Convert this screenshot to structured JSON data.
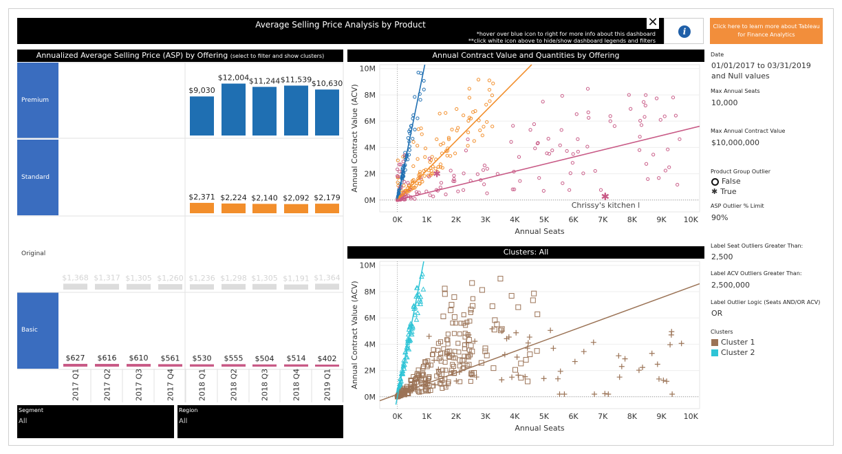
{
  "header": {
    "title": "Average Selling Price Analysis by Product",
    "note1": "*hover over blue icon to right for more info about this dashboard",
    "note2": "**click white icon above to hide/show dashboard legends and filters",
    "close_glyph": "✕",
    "info_glyph": "i",
    "tableau_link": "Click here to learn more about Tableau for Finance Analytics"
  },
  "asp": {
    "title": "Annualized Average Selling Price (ASP) by Offering",
    "subtitle": "(select to filter and show clusters)",
    "offerings": [
      "Premium",
      "Standard",
      "Original",
      "Basic"
    ],
    "quarters": [
      "2017 Q1",
      "2017 Q2",
      "2017 Q3",
      "2017 Q4",
      "2018 Q1",
      "2018 Q2",
      "2018 Q3",
      "2018 Q4",
      "2019 Q1"
    ]
  },
  "chart_data": [
    {
      "type": "bar",
      "title": "Annualized Average Selling Price (ASP) by Offering",
      "categories": [
        "2017 Q1",
        "2017 Q2",
        "2017 Q3",
        "2017 Q4",
        "2018 Q1",
        "2018 Q2",
        "2018 Q3",
        "2018 Q4",
        "2019 Q1"
      ],
      "series": [
        {
          "name": "Premium",
          "color": "#1f6fb2",
          "values": [
            null,
            null,
            null,
            null,
            9030,
            12004,
            11244,
            11539,
            10630
          ],
          "labels": [
            "",
            "",
            "",
            "",
            "$9,030",
            "$12,004",
            "$11,244",
            "$11,539",
            "$10,630"
          ]
        },
        {
          "name": "Standard",
          "color": "#f28e2b",
          "values": [
            null,
            null,
            null,
            null,
            2371,
            2224,
            2140,
            2092,
            2179
          ],
          "labels": [
            "",
            "",
            "",
            "",
            "$2,371",
            "$2,224",
            "$2,140",
            "$2,092",
            "$2,179"
          ]
        },
        {
          "name": "Original",
          "color": "#dcdcdc",
          "values": [
            1368,
            1317,
            1305,
            1260,
            1236,
            1298,
            1305,
            1191,
            1364
          ],
          "labels": [
            "$1,368",
            "$1,317",
            "$1,305",
            "$1,260",
            "$1,236",
            "$1,298",
            "$1,305",
            "$1,191",
            "$1,364"
          ]
        },
        {
          "name": "Basic",
          "color": "#c85a86",
          "values": [
            627,
            616,
            610,
            561,
            530,
            555,
            504,
            514,
            402
          ],
          "labels": [
            "$627",
            "$616",
            "$610",
            "$561",
            "$530",
            "$555",
            "$504",
            "$514",
            "$402"
          ]
        }
      ]
    },
    {
      "type": "scatter",
      "title": "Annual Contract Value and Quantities by Offering",
      "xlabel": "Annual Seats",
      "ylabel": "Annual Contract Value (ACV)",
      "xlim": [
        -600,
        10300
      ],
      "ylim": [
        -900000,
        10300000
      ],
      "xticks": [
        "0K",
        "1K",
        "2K",
        "3K",
        "4K",
        "5K",
        "6K",
        "7K",
        "8K",
        "9K",
        "10K"
      ],
      "yticks": [
        "0M",
        "2M",
        "4M",
        "6M",
        "8M",
        "10M"
      ],
      "annotation": {
        "text": "Chrissy's kitchen l",
        "x": 7100,
        "y": 250000
      },
      "series": [
        {
          "name": "Premium",
          "color": "#1f6fb2",
          "slope": 11000
        },
        {
          "name": "Standard",
          "color": "#f28e2b",
          "slope": 2250
        },
        {
          "name": "Basic",
          "color": "#c85a86",
          "slope": 545
        }
      ]
    },
    {
      "type": "scatter",
      "title": "Clusters: All",
      "xlabel": "Annual Seats",
      "ylabel": "Annual Contract Value (ACV)",
      "xlim": [
        -600,
        10300
      ],
      "ylim": [
        -900000,
        10300000
      ],
      "xticks": [
        "0K",
        "1K",
        "2K",
        "3K",
        "4K",
        "5K",
        "6K",
        "7K",
        "8K",
        "9K",
        "10K"
      ],
      "yticks": [
        "0M",
        "2M",
        "4M",
        "6M",
        "8M",
        "10M"
      ],
      "series": [
        {
          "name": "Cluster 1",
          "color": "#9b7356"
        },
        {
          "name": "Cluster 2",
          "color": "#2ec4d6"
        }
      ]
    }
  ],
  "scatter_top": {
    "title": "Annual Contract Value and Quantities by Offering"
  },
  "scatter_bottom": {
    "title": "Clusters: All"
  },
  "filters": {
    "segment_label": "Segment",
    "segment_value": "All",
    "region_label": "Region",
    "region_value": "All"
  },
  "panel": {
    "date_label": "Date",
    "date_value_1": "01/01/2017 to 03/31/2019",
    "date_value_2": "and Null values",
    "max_seats_label": "Max Annual Seats",
    "max_seats_value": "10,000",
    "max_acv_label": "Max Annual Contract Value",
    "max_acv_value": "$10,000,000",
    "outlier_label": "Product Group Outlier",
    "outlier_false": "False",
    "outlier_true": "True",
    "asp_limit_label": "ASP Outlier % Limit",
    "asp_limit_value": "90%",
    "seat_outlier_label": "Label Seat Outliers Greater Than:",
    "seat_outlier_value": "2,500",
    "acv_outlier_label": "Label ACV Outliers Greater Than:",
    "acv_outlier_value": "2,500,000",
    "logic_label": "Label Outlier Logic (Seats AND/OR ACV)",
    "logic_value": "OR",
    "clusters_label": "Clusters",
    "cluster1": "Cluster 1",
    "cluster2": "Cluster 2",
    "cluster1_color": "#9b7356",
    "cluster2_color": "#2ec4d6"
  }
}
